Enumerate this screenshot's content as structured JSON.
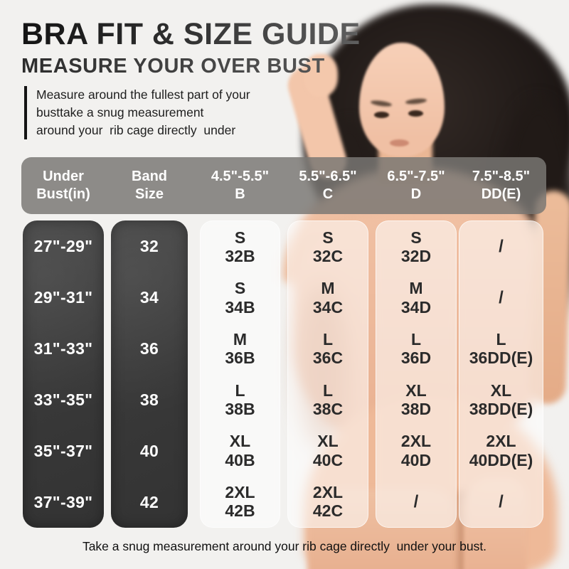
{
  "heading": {
    "title": "BRA FIT & SIZE GUIDE",
    "subtitle": "MEASURE YOUR OVER BUST",
    "description_lines": [
      "Measure around the fullest part of your",
      "busttake a snug measurement",
      "around your  rib cage directly  under"
    ]
  },
  "table": {
    "headers": [
      {
        "line1": "Under",
        "line2": "Bust(in)"
      },
      {
        "line1": "Band",
        "line2": "Size"
      },
      {
        "line1": "4.5\"-5.5\"",
        "line2": "B"
      },
      {
        "line1": "5.5\"-6.5\"",
        "line2": "C"
      },
      {
        "line1": "6.5\"-7.5\"",
        "line2": "D"
      },
      {
        "line1": "7.5\"-8.5\"",
        "line2": "DD(E)"
      }
    ],
    "under_bust": [
      "27\"-29\"",
      "29\"-31\"",
      "31\"-33\"",
      "33\"-35\"",
      "35\"-37\"",
      "37\"-39\""
    ],
    "band_size": [
      "32",
      "34",
      "36",
      "38",
      "40",
      "42"
    ],
    "cups": [
      {
        "name": "B",
        "range": "4.5\"-5.5\"",
        "cells": [
          [
            "S",
            "32B"
          ],
          [
            "S",
            "34B"
          ],
          [
            "M",
            "36B"
          ],
          [
            "L",
            "38B"
          ],
          [
            "XL",
            "40B"
          ],
          [
            "2XL",
            "42B"
          ]
        ]
      },
      {
        "name": "C",
        "range": "5.5\"-6.5\"",
        "cells": [
          [
            "S",
            "32C"
          ],
          [
            "M",
            "34C"
          ],
          [
            "L",
            "36C"
          ],
          [
            "L",
            "38C"
          ],
          [
            "XL",
            "40C"
          ],
          [
            "2XL",
            "42C"
          ]
        ]
      },
      {
        "name": "D",
        "range": "6.5\"-7.5\"",
        "cells": [
          [
            "S",
            "32D"
          ],
          [
            "M",
            "34D"
          ],
          [
            "L",
            "36D"
          ],
          [
            "XL",
            "38D"
          ],
          [
            "2XL",
            "40D"
          ],
          [
            "/"
          ]
        ]
      },
      {
        "name": "DD(E)",
        "range": "7.5\"-8.5\"",
        "cells": [
          [
            "/"
          ],
          [
            "/"
          ],
          [
            "L",
            "36DD(E)"
          ],
          [
            "XL",
            "38DD(E)"
          ],
          [
            "2XL",
            "40DD(E)"
          ],
          [
            "/"
          ]
        ]
      }
    ]
  },
  "footer": {
    "caption": "Take a snug measurement around your rib cage directly  under your bust."
  },
  "colors": {
    "background": "#f2f1ef",
    "title_text": "#1f1f1f",
    "header_bar": "#7a7774",
    "dark_column": "#3b3b3b",
    "column_text_light": "#ffffff",
    "cell_text_dark": "#2b2b2b",
    "cup_column_fill": "#ffffff",
    "skin_tone": "#eec0a4",
    "hair": "#1c1614"
  },
  "chart_data": {
    "type": "table",
    "title": "BRA FIT & SIZE GUIDE",
    "subtitle": "MEASURE YOUR OVER BUST",
    "columns": [
      "Under Bust(in)",
      "Band Size",
      "4.5\"-5.5\" B",
      "5.5\"-6.5\" C",
      "6.5\"-7.5\" D",
      "7.5\"-8.5\" DD(E)"
    ],
    "rows": [
      [
        "27\"-29\"",
        "32",
        "S 32B",
        "S 32C",
        "S 32D",
        "/"
      ],
      [
        "29\"-31\"",
        "34",
        "S 34B",
        "M 34C",
        "M 34D",
        "/"
      ],
      [
        "31\"-33\"",
        "36",
        "M 36B",
        "L 36C",
        "L 36D",
        "L 36DD(E)"
      ],
      [
        "33\"-35\"",
        "38",
        "L 38B",
        "L 38C",
        "XL 38D",
        "XL 38DD(E)"
      ],
      [
        "35\"-37\"",
        "40",
        "XL 40B",
        "XL 40C",
        "2XL 40D",
        "2XL 40DD(E)"
      ],
      [
        "37\"-39\"",
        "42",
        "2XL 42B",
        "2XL 42C",
        "/",
        "/"
      ]
    ]
  }
}
